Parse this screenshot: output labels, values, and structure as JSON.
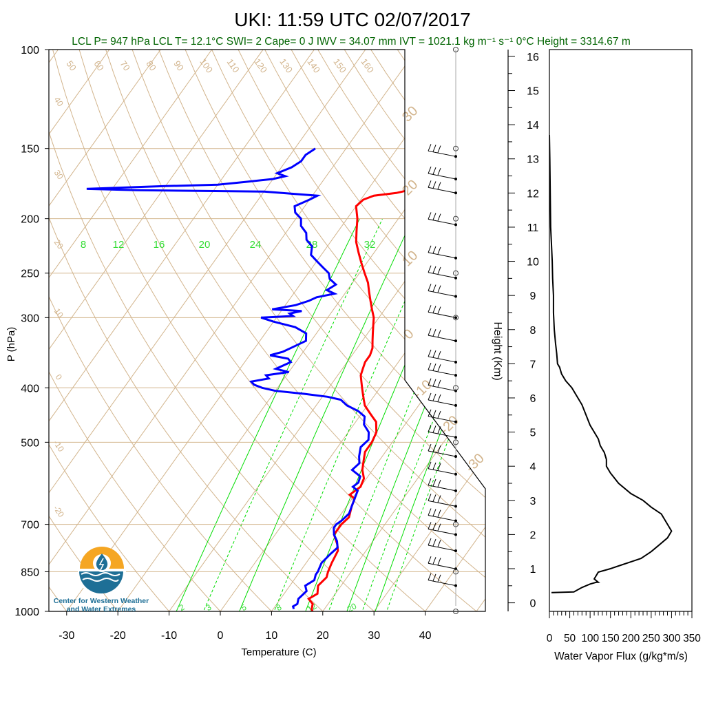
{
  "title": "UKI: 11:59 UTC 02/07/2017",
  "subtitle": "LCL P= 947 hPa  LCL T= 12.1°C  SWI= 2  Cape= 0 J  IWV = 34.07 mm  IVT = 1021.1 kg m⁻¹ s⁻¹  0°C Height = 3314.67 m",
  "logo": {
    "line1": "Center for Western Weather",
    "line2": "and Water Extremes"
  },
  "colors": {
    "temperature": "#ff0000",
    "dewpoint": "#0000ff",
    "flux": "#000000",
    "isotherm": "#d2b48c",
    "mixing_ratio": "#00dd00",
    "subtitle": "#006400",
    "logo_orange": "#f5a623",
    "logo_blue": "#1e6f96"
  },
  "chart_data": [
    {
      "type": "line",
      "title": "UKI: 11:59 UTC 02/07/2017",
      "xlabel": "Temperature (C)",
      "ylabel": "P (hPa)",
      "x_ticks": [
        -30,
        -20,
        -10,
        0,
        10,
        20,
        30,
        40
      ],
      "y_ticks": [
        100,
        150,
        200,
        250,
        300,
        400,
        500,
        700,
        850,
        1000
      ],
      "ylim": [
        1000,
        100
      ],
      "y_scale": "log",
      "isotherm_labels": [
        -40,
        -30,
        -20,
        -10,
        0,
        10,
        20,
        30
      ],
      "dry_adiabat_labels": [
        40,
        30,
        20,
        10,
        0,
        -10,
        -20
      ],
      "top_adiabat_labels": [
        50,
        60,
        70,
        80,
        90,
        100,
        110,
        120,
        130,
        140,
        150,
        160
      ],
      "mixing_ratio_labels_mid": [
        8,
        12,
        16,
        20,
        24,
        28,
        32
      ],
      "mixing_ratio_labels_bottom": [
        2,
        3,
        5,
        8,
        12,
        20
      ],
      "series": [
        {
          "name": "Temperature",
          "points": [
            [
              18.0,
              1000
            ],
            [
              17.5,
              990
            ],
            [
              17,
              970
            ],
            [
              15.5,
              950
            ],
            [
              16.5,
              930
            ],
            [
              15.5,
              900
            ],
            [
              16,
              870
            ],
            [
              15.5,
              850
            ],
            [
              15,
              820
            ],
            [
              14.5,
              780
            ],
            [
              13.5,
              760
            ],
            [
              11.5,
              730
            ],
            [
              11.5,
              700
            ],
            [
              12,
              680
            ],
            [
              11,
              650
            ],
            [
              10.5,
              630
            ],
            [
              9,
              620
            ],
            [
              10,
              600
            ],
            [
              9.5,
              580
            ],
            [
              8,
              560
            ],
            [
              7,
              540
            ],
            [
              6,
              520
            ],
            [
              6,
              500
            ],
            [
              5.5,
              480
            ],
            [
              4,
              460
            ],
            [
              2.5,
              450
            ],
            [
              1,
              440
            ],
            [
              -0.5,
              430
            ],
            [
              -1.5,
              420
            ],
            [
              -2.5,
              410
            ],
            [
              -3.5,
              400
            ],
            [
              -4.5,
              390
            ],
            [
              -5.5,
              380
            ],
            [
              -6,
              370
            ],
            [
              -6.5,
              360
            ],
            [
              -6.5,
              350
            ],
            [
              -7,
              340
            ],
            [
              -8,
              330
            ],
            [
              -9,
              320
            ],
            [
              -10,
              310
            ],
            [
              -11,
              300
            ],
            [
              -12.5,
              290
            ],
            [
              -14,
              280
            ],
            [
              -15.5,
              270
            ],
            [
              -17,
              260
            ],
            [
              -19,
              250
            ],
            [
              -21,
              240
            ],
            [
              -23,
              230
            ],
            [
              -25,
              220
            ],
            [
              -26.5,
              210
            ],
            [
              -28,
              200
            ],
            [
              -30,
              190
            ],
            [
              -29.5,
              185
            ],
            [
              -28,
              182
            ],
            [
              -24,
              180
            ],
            [
              -20,
              176
            ],
            [
              -19,
              172
            ],
            [
              -16,
              165
            ],
            [
              -14,
              160
            ],
            [
              -13.5,
              155
            ],
            [
              -13.5,
              150
            ]
          ]
        },
        {
          "name": "Dewpoint",
          "points": [
            [
              14,
              990
            ],
            [
              13.5,
              980
            ],
            [
              14,
              970
            ],
            [
              13.5,
              950
            ],
            [
              14,
              920
            ],
            [
              13,
              900
            ],
            [
              14,
              880
            ],
            [
              13.5,
              860
            ],
            [
              13.5,
              850
            ],
            [
              13,
              820
            ],
            [
              13.5,
              790
            ],
            [
              14,
              770
            ],
            [
              13,
              750
            ],
            [
              11.5,
              730
            ],
            [
              10.5,
              710
            ],
            [
              10.5,
              700
            ],
            [
              11,
              690
            ],
            [
              11.5,
              670
            ],
            [
              11,
              650
            ],
            [
              10.5,
              630
            ],
            [
              10,
              610
            ],
            [
              8.5,
              600
            ],
            [
              9,
              590
            ],
            [
              8.5,
              575
            ],
            [
              6,
              560
            ],
            [
              6.5,
              545
            ],
            [
              5.5,
              530
            ],
            [
              4.5,
              510
            ],
            [
              5,
              495
            ],
            [
              4,
              480
            ],
            [
              2,
              465
            ],
            [
              1,
              450
            ],
            [
              -1,
              440
            ],
            [
              -4,
              430
            ],
            [
              -6,
              420
            ],
            [
              -9,
              415
            ],
            [
              -14,
              410
            ],
            [
              -20,
              405
            ],
            [
              -23,
              400
            ],
            [
              -25,
              395
            ],
            [
              -26,
              390
            ],
            [
              -23,
              385
            ],
            [
              -24,
              380
            ],
            [
              -20,
              375
            ],
            [
              -23,
              370
            ],
            [
              -21,
              360
            ],
            [
              -22,
              355
            ],
            [
              -26,
              350
            ],
            [
              -24,
              345
            ],
            [
              -23,
              340
            ],
            [
              -21,
              330
            ],
            [
              -22,
              320
            ],
            [
              -25,
              312
            ],
            [
              -30,
              305
            ],
            [
              -33,
              300
            ],
            [
              -27,
              298
            ],
            [
              -28,
              295
            ],
            [
              -26,
              292
            ],
            [
              -32,
              290
            ],
            [
              -28,
              285
            ],
            [
              -26,
              280
            ],
            [
              -25,
              276
            ],
            [
              -22,
              272
            ],
            [
              -24,
              268
            ],
            [
              -23,
              262
            ],
            [
              -25,
              256
            ],
            [
              -26,
              250
            ],
            [
              -28,
              244
            ],
            [
              -30,
              238
            ],
            [
              -32,
              232
            ],
            [
              -33,
              224
            ],
            [
              -35,
              218
            ],
            [
              -36,
              212
            ],
            [
              -38,
              206
            ],
            [
              -39,
              200
            ],
            [
              -41,
              195
            ],
            [
              -42,
              190
            ],
            [
              -40,
              185
            ],
            [
              -39,
              182
            ],
            [
              -50,
              179
            ],
            [
              -75,
              178
            ],
            [
              -85,
              177
            ],
            [
              -70,
              175
            ],
            [
              -60,
              174
            ],
            [
              -55,
              172
            ],
            [
              -50,
              170
            ],
            [
              -48,
              168
            ],
            [
              -50,
              166
            ],
            [
              -48,
              162
            ],
            [
              -47,
              158
            ],
            [
              -47,
              154
            ],
            [
              -46,
              150
            ]
          ]
        }
      ],
      "wind_barbs_pressure": [
        155,
        170,
        180,
        205,
        235,
        255,
        275,
        300,
        330,
        360,
        380,
        405,
        430,
        460,
        490,
        530,
        570,
        610,
        650,
        690,
        730,
        780,
        840,
        900
      ]
    },
    {
      "type": "line",
      "xlabel": "Water Vapor Flux (g/kg*m/s)",
      "ylabel": "Height (Km)",
      "x_ticks": [
        0,
        50,
        100,
        150,
        200,
        250,
        300,
        350
      ],
      "xlim": [
        0,
        350
      ],
      "y_ticks": [
        0,
        1,
        2,
        3,
        4,
        5,
        6,
        7,
        8,
        9,
        10,
        11,
        12,
        13,
        14,
        15,
        16
      ],
      "ylim": [
        -0.25,
        16.2
      ],
      "series": [
        {
          "name": "Water Vapor Flux",
          "points": [
            [
              5,
              0.3
            ],
            [
              60,
              0.32
            ],
            [
              80,
              0.45
            ],
            [
              100,
              0.55
            ],
            [
              115,
              0.6
            ],
            [
              120,
              0.6
            ],
            [
              110,
              0.7
            ],
            [
              120,
              0.9
            ],
            [
              150,
              1.0
            ],
            [
              175,
              1.1
            ],
            [
              200,
              1.2
            ],
            [
              225,
              1.3
            ],
            [
              250,
              1.5
            ],
            [
              270,
              1.7
            ],
            [
              290,
              1.9
            ],
            [
              300,
              2.1
            ],
            [
              290,
              2.3
            ],
            [
              275,
              2.6
            ],
            [
              250,
              2.8
            ],
            [
              230,
              3.0
            ],
            [
              200,
              3.2
            ],
            [
              170,
              3.5
            ],
            [
              150,
              3.8
            ],
            [
              140,
              4.0
            ],
            [
              140,
              4.2
            ],
            [
              135,
              4.4
            ],
            [
              125,
              4.6
            ],
            [
              120,
              4.8
            ],
            [
              110,
              5.0
            ],
            [
              100,
              5.2
            ],
            [
              90,
              5.5
            ],
            [
              80,
              5.8
            ],
            [
              70,
              6.0
            ],
            [
              55,
              6.3
            ],
            [
              40,
              6.5
            ],
            [
              30,
              6.7
            ],
            [
              25,
              6.9
            ],
            [
              20,
              7.0
            ],
            [
              18,
              7.3
            ],
            [
              15,
              7.6
            ],
            [
              12,
              8.0
            ],
            [
              10,
              8.5
            ],
            [
              10,
              9.0
            ],
            [
              8,
              9.5
            ],
            [
              7,
              10.0
            ],
            [
              5,
              10.5
            ],
            [
              3,
              11.0
            ],
            [
              2,
              12.0
            ],
            [
              1,
              13.0
            ],
            [
              0,
              13.7
            ]
          ]
        }
      ]
    }
  ]
}
